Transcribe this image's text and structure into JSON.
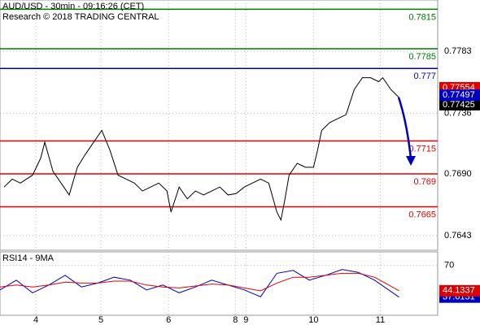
{
  "chart_data": [
    {
      "type": "line",
      "title": "AUD/USD - 30min - 09:16:26 (CET)",
      "subtitle": "Research © 2018 TRADING CENTRAL",
      "x": [
        2,
        6,
        10,
        16,
        20,
        22,
        26,
        30,
        34,
        38,
        42,
        46,
        50,
        54,
        58,
        62,
        66,
        70,
        74,
        78,
        82,
        84,
        88,
        92,
        96,
        100,
        104,
        108,
        112,
        116,
        120,
        124,
        128,
        132,
        136,
        138,
        140,
        142,
        146,
        150,
        154,
        156,
        158,
        162,
        166,
        170,
        174,
        178,
        182,
        186,
        188,
        192,
        196,
        197
      ],
      "series": [
        {
          "color": "#000000",
          "values": [
            0.768,
            0.7686,
            0.7683,
            0.7689,
            0.7702,
            0.7714,
            0.7692,
            0.7683,
            0.7674,
            0.7695,
            0.7705,
            0.7714,
            0.7723,
            0.7708,
            0.7689,
            0.7686,
            0.7683,
            0.7677,
            0.768,
            0.7683,
            0.7677,
            0.7661,
            0.768,
            0.7671,
            0.7677,
            0.7674,
            0.7677,
            0.768,
            0.7674,
            0.7675,
            0.768,
            0.7683,
            0.7686,
            0.7683,
            0.7661,
            0.7655,
            0.7671,
            0.7689,
            0.7698,
            0.7695,
            0.7695,
            0.7708,
            0.7723,
            0.7729,
            0.7732,
            0.7735,
            0.7754,
            0.7763,
            0.7763,
            0.776,
            0.7763,
            0.7754,
            0.7748,
            0.77425
          ]
        }
      ],
      "levels": [
        {
          "value": 0.7815,
          "color": "#007a00"
        },
        {
          "value": 0.7785,
          "color": "#007a00"
        },
        {
          "value": 0.777,
          "color": "#0000c0"
        },
        {
          "value": 0.7715,
          "color": "#e00000"
        },
        {
          "value": 0.769,
          "color": "#e00000"
        },
        {
          "value": 0.7665,
          "color": "#e00000"
        }
      ],
      "price_labels": [
        {
          "value": 0.77554,
          "color": "#e00000"
        },
        {
          "value": 0.77497,
          "color": "#0000c0"
        }
      ],
      "xlim": [
        0,
        215
      ],
      "ylim": [
        0.7632,
        0.7822
      ],
      "yticks": [
        0.7783,
        0.7736,
        {
          "value": 0.769,
          "label": "0.7690"
        },
        0.7643
      ],
      "xticks": [
        {
          "value": 17.6,
          "label": "4"
        },
        {
          "value": 49.6,
          "label": "5"
        },
        {
          "value": 82.8,
          "label": "6"
        },
        {
          "value": 115.6,
          "label": "8"
        },
        {
          "value": 120.8,
          "label": "9"
        },
        {
          "value": 154,
          "label": "10"
        },
        {
          "value": 186.8,
          "label": "11"
        }
      ],
      "grid": true
    },
    {
      "type": "line",
      "title": "RSI14 - 9MA",
      "x": [
        0,
        8,
        16,
        24,
        32,
        40,
        48,
        56,
        64,
        72,
        80,
        88,
        96,
        104,
        112,
        120,
        128,
        136,
        144,
        152,
        160,
        168,
        176,
        184,
        196
      ],
      "series": [
        {
          "color": "#0000c0",
          "values": [
            45,
            55,
            42,
            50,
            60,
            48,
            52,
            58,
            55,
            45,
            50,
            42,
            48,
            55,
            50,
            45,
            38,
            62,
            65,
            55,
            60,
            66,
            63,
            55,
            37.6131
          ]
        },
        {
          "color": "#e00000",
          "values": [
            48,
            50,
            48,
            50,
            53,
            52,
            52,
            54,
            54,
            50,
            48,
            47,
            49,
            51,
            50,
            47,
            44,
            52,
            58,
            58,
            60,
            62,
            62,
            58,
            44.1337
          ]
        }
      ],
      "xlim": [
        0,
        215
      ],
      "ylim": [
        19,
        84
      ],
      "yticks": [
        70
      ],
      "grid": true
    }
  ]
}
